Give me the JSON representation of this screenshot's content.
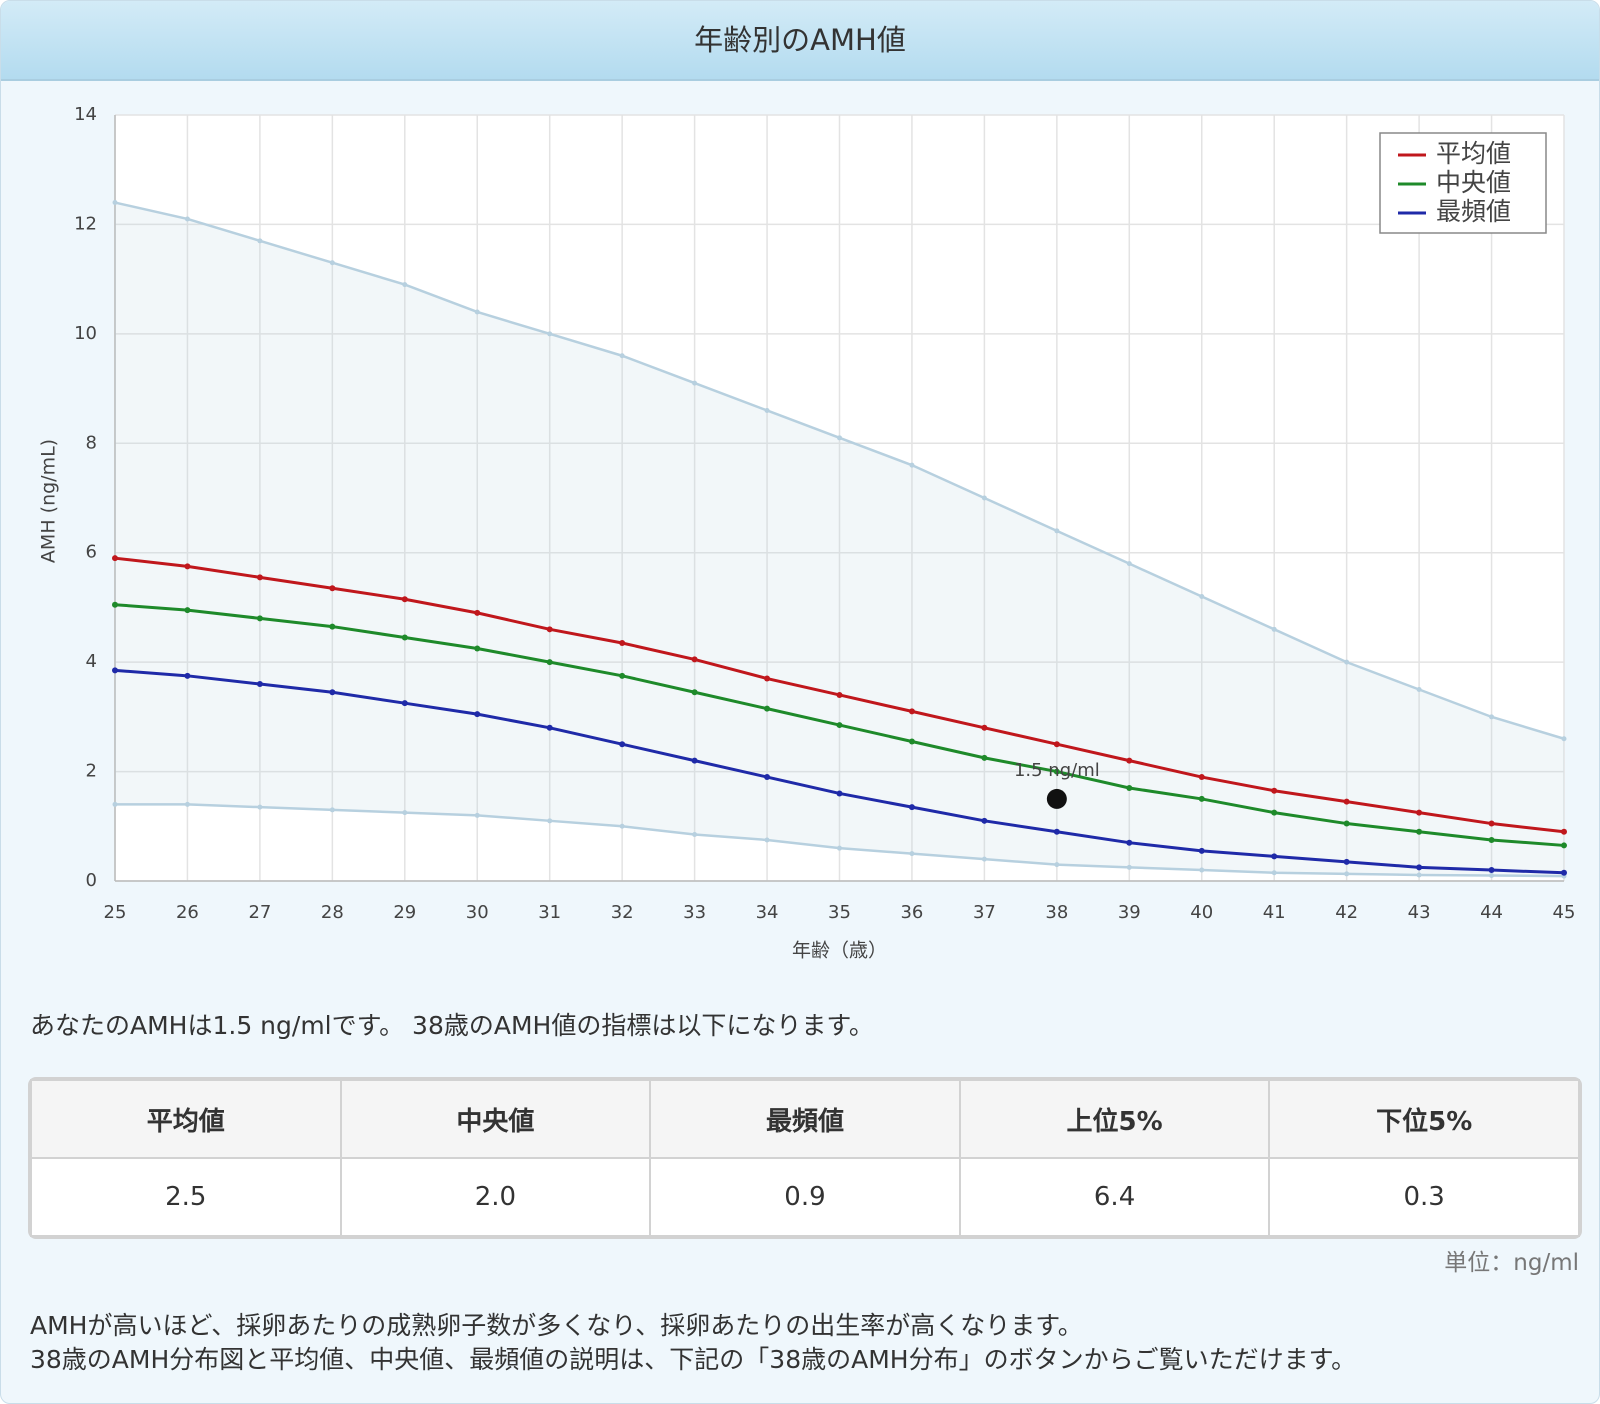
{
  "header": {
    "title": "年齢別のAMH値"
  },
  "chart_data": {
    "type": "line",
    "x": [
      25,
      26,
      27,
      28,
      29,
      30,
      31,
      32,
      33,
      34,
      35,
      36,
      37,
      38,
      39,
      40,
      41,
      42,
      43,
      44,
      45
    ],
    "xlim": [
      25,
      45
    ],
    "xticks": [
      25,
      26,
      27,
      28,
      29,
      30,
      31,
      32,
      33,
      34,
      35,
      36,
      37,
      38,
      39,
      40,
      41,
      42,
      43,
      44,
      45
    ],
    "ylim": [
      0,
      14
    ],
    "yticks": [
      0,
      2,
      4,
      6,
      8,
      10,
      12,
      14
    ],
    "x_label": "年齢（歳）",
    "y_label": "AMH (ng/mL)",
    "grid": true,
    "legend": "upper-right",
    "series": [
      {
        "name": "平均値",
        "color": "#c0171c",
        "values": [
          5.9,
          5.75,
          5.55,
          5.35,
          5.15,
          4.9,
          4.6,
          4.35,
          4.05,
          3.7,
          3.4,
          3.1,
          2.8,
          2.5,
          2.2,
          1.9,
          1.65,
          1.45,
          1.25,
          1.05,
          0.9
        ]
      },
      {
        "name": "中央値",
        "color": "#1e8a2a",
        "values": [
          5.05,
          4.95,
          4.8,
          4.65,
          4.45,
          4.25,
          4.0,
          3.75,
          3.45,
          3.15,
          2.85,
          2.55,
          2.25,
          2.0,
          1.7,
          1.5,
          1.25,
          1.05,
          0.9,
          0.75,
          0.65
        ]
      },
      {
        "name": "最頻値",
        "color": "#1f2aa8",
        "values": [
          3.85,
          3.75,
          3.6,
          3.45,
          3.25,
          3.05,
          2.8,
          2.5,
          2.2,
          1.9,
          1.6,
          1.35,
          1.1,
          0.9,
          0.7,
          0.55,
          0.45,
          0.35,
          0.25,
          0.2,
          0.15
        ]
      }
    ],
    "band": {
      "color": "#b7d0df",
      "upper": [
        12.4,
        12.1,
        11.7,
        11.3,
        10.9,
        10.4,
        10.0,
        9.6,
        9.1,
        8.6,
        8.1,
        7.6,
        7.0,
        6.4,
        5.8,
        5.2,
        4.6,
        4.0,
        3.5,
        3.0,
        2.6
      ],
      "lower": [
        1.4,
        1.4,
        1.35,
        1.3,
        1.25,
        1.2,
        1.1,
        1.0,
        0.85,
        0.75,
        0.6,
        0.5,
        0.4,
        0.3,
        0.25,
        0.2,
        0.15,
        0.13,
        0.11,
        0.1,
        0.09
      ]
    },
    "point": {
      "x": 38,
      "y": 1.5,
      "label": "1.5 ng/ml",
      "color": "#111111"
    }
  },
  "summary": "あなたのAMHは1.5 ng/mlです。 38歳のAMH値の指標は以下になります。",
  "table": {
    "headers": [
      "平均値",
      "中央値",
      "最頻値",
      "上位5%",
      "下位5%"
    ],
    "rows": [
      [
        "2.5",
        "2.0",
        "0.9",
        "6.4",
        "0.3"
      ]
    ]
  },
  "unit": "単位：ng/ml",
  "notes": [
    "AMHが高いほど、採卵あたりの成熟卵子数が多くなり、採卵あたりの出生率が高くなります。",
    "38歳のAMH分布図と平均値、中央値、最頻値の説明は、下記の「38歳のAMH分布」のボタンからご覧いただけます。"
  ]
}
